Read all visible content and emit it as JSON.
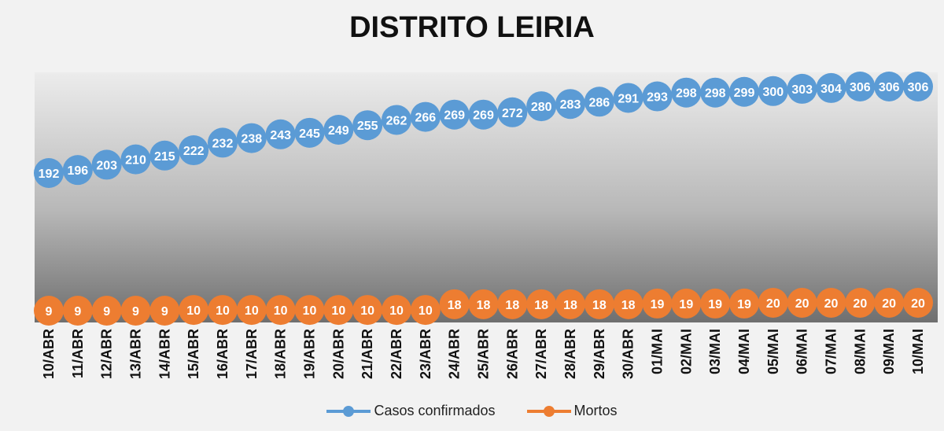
{
  "chart_data": {
    "type": "line",
    "title": "DISTRITO LEIRIA",
    "categories": [
      "10/ABR",
      "11/ABR",
      "12/ABR",
      "13/ABR",
      "14/ABR",
      "15/ABR",
      "16/ABR",
      "17/ABR",
      "18/ABR",
      "19/ABR",
      "20/ABR",
      "21/ABR",
      "22/ABR",
      "23/ABR",
      "24/ABR",
      "25/ABR",
      "26/ABR",
      "27/ABR",
      "28/ABR",
      "29/ABR",
      "30/ABR",
      "01/MAI",
      "02/MAI",
      "03/MAI",
      "04/MAI",
      "05/MAI",
      "06/MAI",
      "07/MAI",
      "08/MAI",
      "09/MAI",
      "10/MAI"
    ],
    "series": [
      {
        "name": "Casos confirmados",
        "color": "#5b9bd5",
        "values": [
          192,
          196,
          203,
          210,
          215,
          222,
          232,
          238,
          243,
          245,
          249,
          255,
          262,
          266,
          269,
          269,
          272,
          280,
          283,
          286,
          291,
          293,
          298,
          298,
          299,
          300,
          303,
          304,
          306,
          306,
          306
        ]
      },
      {
        "name": "Mortos",
        "color": "#ed7d31",
        "values": [
          9,
          9,
          9,
          9,
          9,
          10,
          10,
          10,
          10,
          10,
          10,
          10,
          10,
          10,
          18,
          18,
          18,
          18,
          18,
          18,
          18,
          19,
          19,
          19,
          19,
          20,
          20,
          20,
          20,
          20,
          20
        ]
      }
    ],
    "data_labels": true,
    "legend_position": "bottom",
    "grid": false
  }
}
